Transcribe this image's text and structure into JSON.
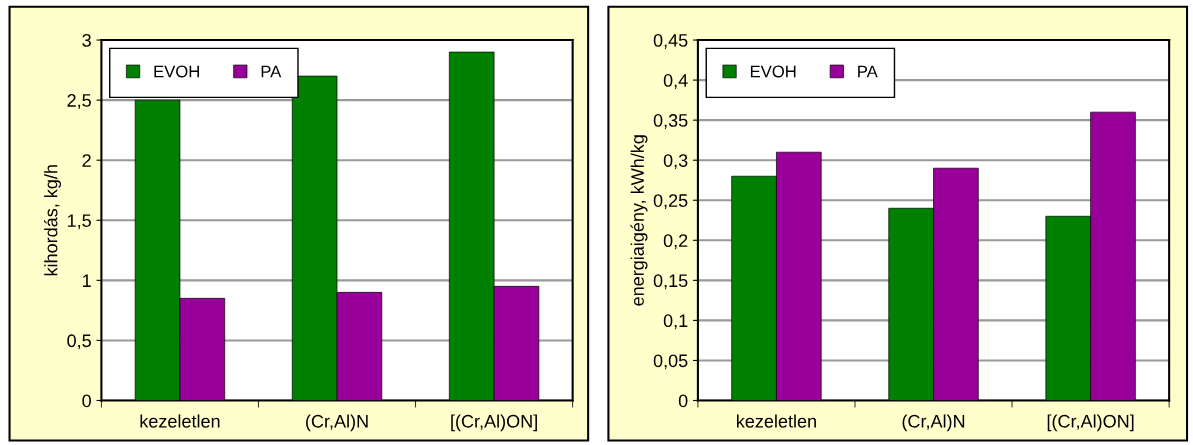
{
  "chart_data": [
    {
      "type": "bar",
      "ylabel": "kihordás, kg/h",
      "categories": [
        "kezeletlen",
        "(Cr,Al)N",
        "[(Cr,Al)ON]"
      ],
      "series": [
        {
          "name": "EVOH",
          "color": "#008000",
          "values": [
            2.5,
            2.7,
            2.9
          ]
        },
        {
          "name": "PA",
          "color": "#990099",
          "values": [
            0.85,
            0.9,
            0.95
          ]
        }
      ],
      "ylim": [
        0,
        3
      ],
      "yticks": [
        0,
        {
          "value": 0.5,
          "label": "0,5"
        },
        1,
        {
          "value": 1.5,
          "label": "1,5"
        },
        2,
        {
          "value": 2.5,
          "label": "2,5"
        },
        3
      ],
      "grid": "y",
      "legend": "top left"
    },
    {
      "type": "bar",
      "ylabel": "energiaigény, kWh/kg",
      "categories": [
        "kezeletlen",
        "(Cr,Al)N",
        "[(Cr,Al)ON]"
      ],
      "series": [
        {
          "name": "EVOH",
          "color": "#008000",
          "values": [
            0.28,
            0.24,
            0.23
          ]
        },
        {
          "name": "PA",
          "color": "#990099",
          "values": [
            0.31,
            0.29,
            0.36
          ]
        }
      ],
      "ylim": [
        0,
        0.45
      ],
      "yticks": [
        0,
        {
          "value": 0.05,
          "label": "0,05"
        },
        {
          "value": 0.1,
          "label": "0,1"
        },
        {
          "value": 0.15,
          "label": "0,15"
        },
        {
          "value": 0.2,
          "label": "0,2"
        },
        {
          "value": 0.25,
          "label": "0,25"
        },
        {
          "value": 0.3,
          "label": "0,3"
        },
        {
          "value": 0.35,
          "label": "0,35"
        },
        {
          "value": 0.4,
          "label": "0,4"
        },
        {
          "value": 0.45,
          "label": "0,45"
        }
      ],
      "grid": "y",
      "legend": "top left"
    }
  ]
}
